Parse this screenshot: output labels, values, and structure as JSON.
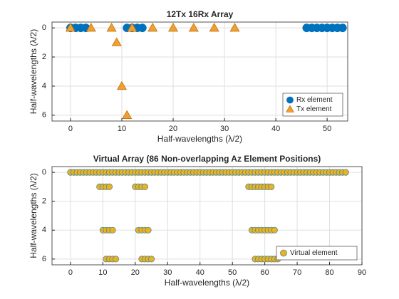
{
  "chart_data": [
    {
      "type": "scatter",
      "title": "12Tx 16Rx Array",
      "xlabel": "Half-wavelengths  (λ/2)",
      "ylabel": "Half-wavelengths  (λ/2)",
      "xlim": [
        -3.6,
        54
      ],
      "xticks": [
        0,
        10,
        20,
        30,
        40,
        50
      ],
      "ylim": [
        -0.4,
        6.4
      ],
      "yticks": [
        0,
        2,
        4,
        6
      ],
      "ydir": "reverse",
      "grid": true,
      "legend": "southeast",
      "series": [
        {
          "name": "Rx element",
          "color": "#0072BD",
          "edgecolor": "#0072BD",
          "marker": "o",
          "x": [
            0,
            1,
            2,
            3,
            11,
            12,
            13,
            14,
            46,
            47,
            48,
            49,
            50,
            51,
            52,
            53
          ],
          "y": [
            0,
            0,
            0,
            0,
            0,
            0,
            0,
            0,
            0,
            0,
            0,
            0,
            0,
            0,
            0,
            0
          ]
        },
        {
          "name": "Tx element",
          "color": "#F0A030",
          "edgecolor": "#C07010",
          "marker": "^",
          "x": [
            0,
            4,
            8,
            9,
            10,
            11,
            12,
            16,
            20,
            24,
            28,
            32
          ],
          "y": [
            0,
            0,
            0,
            1,
            4,
            6,
            0,
            0,
            0,
            0,
            0,
            0
          ]
        }
      ]
    },
    {
      "type": "scatter",
      "title": "Virtual Array (86 Non-overlapping Az Element Positions)",
      "xlabel": "Half-wavelengths  (λ/2)",
      "ylabel": "Half-wavelengths  (λ/2)",
      "xlim": [
        -5.7,
        90
      ],
      "xticks": [
        0,
        10,
        20,
        30,
        40,
        50,
        60,
        70,
        80,
        90
      ],
      "ylim": [
        -0.4,
        6.4
      ],
      "yticks": [
        0,
        2,
        4,
        6
      ],
      "ydir": "reverse",
      "grid": true,
      "legend": "southeast",
      "series": [
        {
          "name": "Virtual element",
          "color": "#EDB120",
          "edgecolor": "#4A8A9A",
          "marker": "o",
          "x": [
            0,
            1,
            2,
            3,
            4,
            5,
            6,
            7,
            8,
            9,
            10,
            11,
            12,
            13,
            14,
            15,
            16,
            17,
            18,
            19,
            20,
            21,
            22,
            23,
            24,
            25,
            26,
            27,
            28,
            29,
            30,
            31,
            32,
            33,
            34,
            35,
            36,
            37,
            38,
            39,
            40,
            41,
            42,
            43,
            44,
            45,
            46,
            47,
            48,
            49,
            50,
            51,
            52,
            53,
            54,
            55,
            56,
            57,
            58,
            59,
            60,
            61,
            62,
            63,
            64,
            65,
            66,
            67,
            68,
            69,
            70,
            71,
            72,
            73,
            74,
            75,
            76,
            77,
            78,
            79,
            80,
            81,
            82,
            83,
            84,
            85,
            9,
            10,
            11,
            12,
            20,
            21,
            22,
            23,
            55,
            56,
            57,
            58,
            59,
            60,
            61,
            62,
            10,
            11,
            12,
            13,
            21,
            22,
            23,
            24,
            56,
            57,
            58,
            59,
            60,
            61,
            62,
            63,
            11,
            12,
            13,
            14,
            22,
            23,
            24,
            25,
            57,
            58,
            59,
            60,
            61,
            62,
            63,
            64
          ],
          "y": [
            0,
            0,
            0,
            0,
            0,
            0,
            0,
            0,
            0,
            0,
            0,
            0,
            0,
            0,
            0,
            0,
            0,
            0,
            0,
            0,
            0,
            0,
            0,
            0,
            0,
            0,
            0,
            0,
            0,
            0,
            0,
            0,
            0,
            0,
            0,
            0,
            0,
            0,
            0,
            0,
            0,
            0,
            0,
            0,
            0,
            0,
            0,
            0,
            0,
            0,
            0,
            0,
            0,
            0,
            0,
            0,
            0,
            0,
            0,
            0,
            0,
            0,
            0,
            0,
            0,
            0,
            0,
            0,
            0,
            0,
            0,
            0,
            0,
            0,
            0,
            0,
            0,
            0,
            0,
            0,
            0,
            0,
            0,
            0,
            0,
            0,
            1,
            1,
            1,
            1,
            1,
            1,
            1,
            1,
            1,
            1,
            1,
            1,
            1,
            1,
            1,
            1,
            4,
            4,
            4,
            4,
            4,
            4,
            4,
            4,
            4,
            4,
            4,
            4,
            4,
            4,
            4,
            4,
            6,
            6,
            6,
            6,
            6,
            6,
            6,
            6,
            6,
            6,
            6,
            6,
            6,
            6,
            6,
            6
          ]
        }
      ]
    }
  ]
}
